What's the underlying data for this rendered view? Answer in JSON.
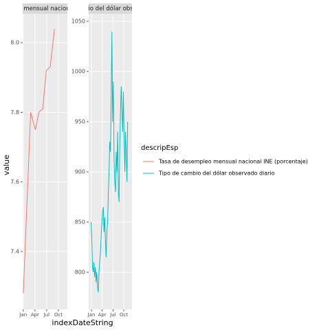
{
  "chart_data": {
    "type": "line",
    "xlabel": "indexDateString",
    "ylabel": "value",
    "legend_title": "descripEsp",
    "xticks": [
      {
        "value": 1,
        "label": "Jan"
      },
      {
        "value": 4,
        "label": "Apr"
      },
      {
        "value": 7,
        "label": "Jul"
      },
      {
        "value": 10,
        "label": "Oct"
      }
    ],
    "series": [
      {
        "name": "Tasa de desempleo mensual nacional INE (porcentaje)",
        "color": "#f8766d",
        "x": [
          1,
          2.9,
          4.1,
          5.0,
          6.0,
          6.9,
          7.9,
          9.0
        ],
        "values": [
          7.28,
          7.8,
          7.75,
          7.8,
          7.81,
          7.92,
          7.93,
          8.04
        ],
        "xlim": [
          0.85,
          12.3
        ],
        "ylim": [
          7.234,
          8.083
        ],
        "yticks": [
          7.4,
          7.6,
          7.8,
          {
            "value": 8.0,
            "label": "8.0"
          }
        ]
      },
      {
        "name": "Tipo de cambio del dólar observado diario",
        "color": "#00bfc4",
        "x": [
          0.9,
          1.1,
          1.3,
          1.5,
          1.7,
          1.9,
          2.1,
          2.3,
          2.5,
          2.7,
          2.9,
          3.1,
          3.3,
          3.5,
          3.7,
          3.9,
          4.1,
          4.3,
          4.5,
          4.7,
          4.9,
          5.1,
          5.3,
          5.5,
          5.7,
          5.9,
          6.1,
          6.3,
          6.5,
          6.7,
          6.9,
          7.1,
          7.3,
          7.5,
          7.7,
          7.9,
          8.1,
          8.3,
          8.5,
          8.7,
          8.9,
          9.1,
          9.3,
          9.5,
          9.7,
          9.9,
          10.1,
          10.3,
          10.5,
          10.7,
          10.9,
          11.1
        ],
        "values": [
          850,
          835,
          805,
          800,
          810,
          795,
          805,
          790,
          800,
          785,
          780,
          800,
          810,
          820,
          835,
          850,
          860,
          865,
          840,
          855,
          830,
          815,
          840,
          850,
          880,
          900,
          930,
          920,
          975,
          1040,
          950,
          990,
          910,
          890,
          880,
          920,
          900,
          940,
          880,
          870,
          930,
          960,
          985,
          960,
          940,
          980,
          930,
          900,
          940,
          920,
          890,
          950
        ],
        "xlim": [
          0.23,
          12.3
        ],
        "ylim": [
          763,
          1057.5
        ],
        "yticks": [
          800,
          850,
          900,
          950,
          1000,
          1050
        ]
      }
    ]
  }
}
